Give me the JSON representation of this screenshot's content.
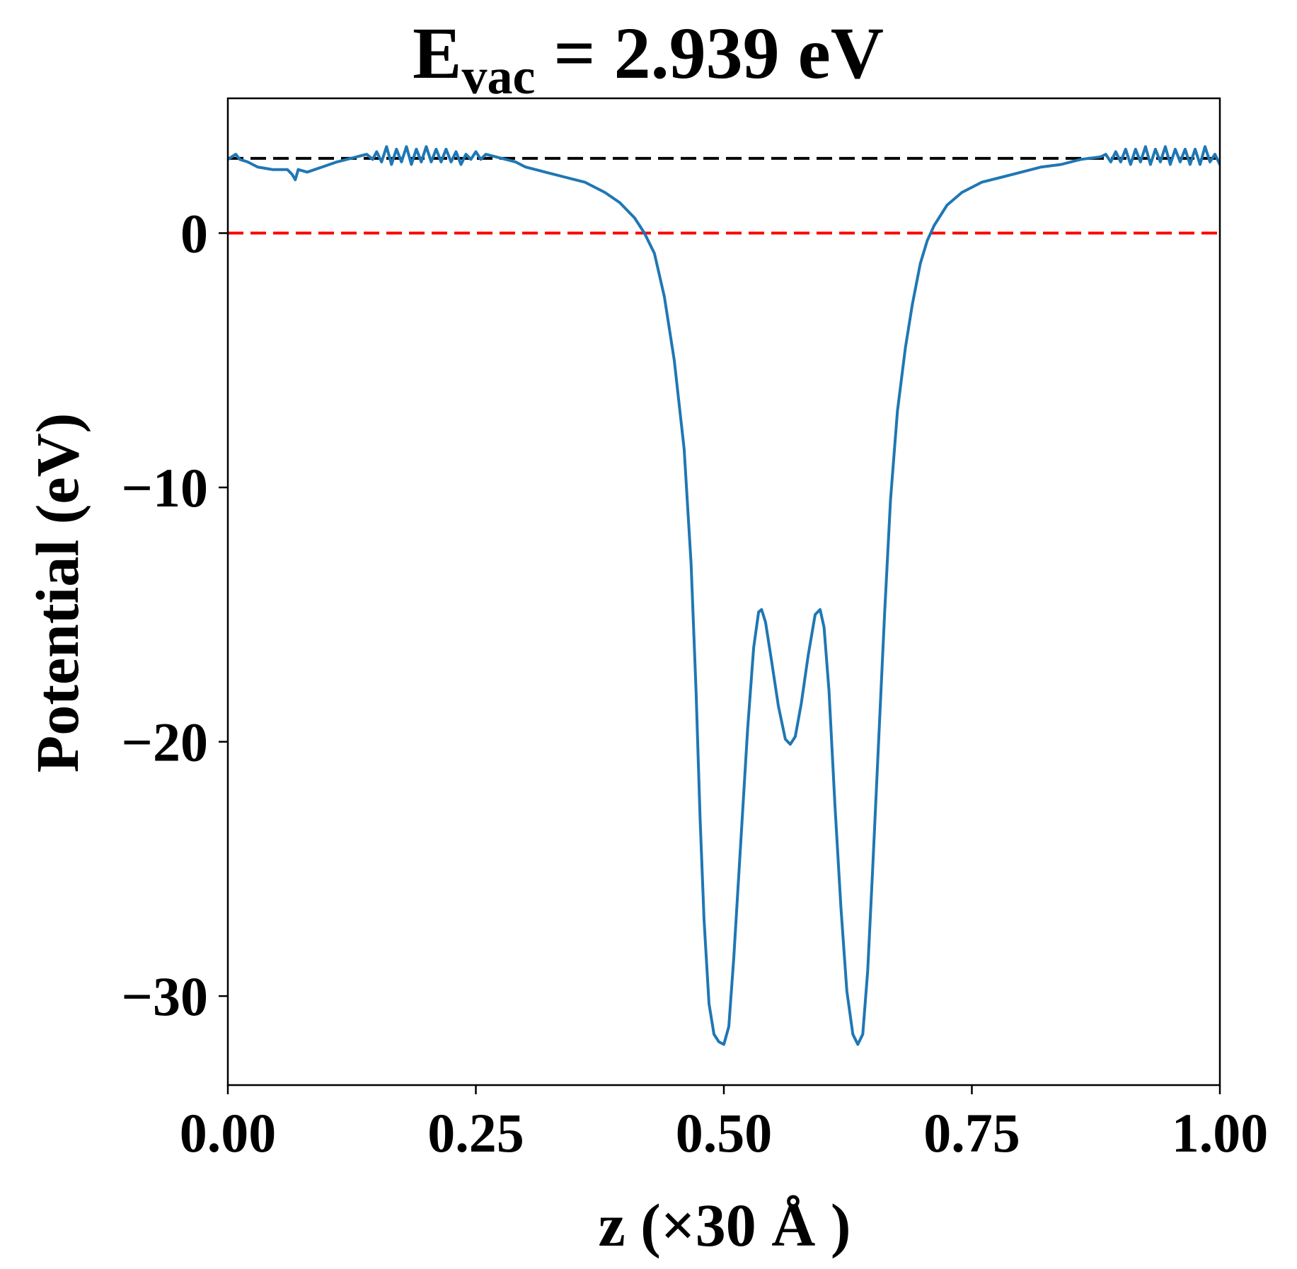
{
  "chart_data": {
    "type": "line",
    "title": {
      "main": "E",
      "subscript": "vac",
      "rest": " = 2.939 eV"
    },
    "xlabel": "z (×30 Å )",
    "ylabel": "Potential (eV)",
    "xlim": [
      0,
      1
    ],
    "ylim": [
      -33.5,
      5.3
    ],
    "x_ticks": [
      0,
      0.25,
      0.5,
      0.75,
      1.0
    ],
    "x_tick_labels": [
      "0.00",
      "0.25",
      "0.50",
      "0.75",
      "1.00"
    ],
    "y_ticks": [
      0,
      -10,
      -20,
      -30
    ],
    "y_tick_labels": [
      "0",
      "−10",
      "−20",
      "−30"
    ],
    "reference_lines": [
      {
        "y": 2.939,
        "color": "#000000",
        "style": "dashed"
      },
      {
        "y": 0,
        "color": "#ff0000",
        "style": "dashed"
      }
    ],
    "series": [
      {
        "color": "#1f77b4",
        "points": [
          [
            0.0,
            2.9
          ],
          [
            0.008,
            3.1
          ],
          [
            0.012,
            2.9
          ],
          [
            0.02,
            2.8
          ],
          [
            0.03,
            2.6
          ],
          [
            0.045,
            2.5
          ],
          [
            0.06,
            2.5
          ],
          [
            0.065,
            2.3
          ],
          [
            0.068,
            2.1
          ],
          [
            0.071,
            2.5
          ],
          [
            0.08,
            2.4
          ],
          [
            0.095,
            2.6
          ],
          [
            0.11,
            2.8
          ],
          [
            0.13,
            3.0
          ],
          [
            0.14,
            3.1
          ],
          [
            0.146,
            2.9
          ],
          [
            0.15,
            3.2
          ],
          [
            0.155,
            2.8
          ],
          [
            0.16,
            3.4
          ],
          [
            0.165,
            2.7
          ],
          [
            0.17,
            3.3
          ],
          [
            0.175,
            2.8
          ],
          [
            0.18,
            3.4
          ],
          [
            0.185,
            2.7
          ],
          [
            0.19,
            3.3
          ],
          [
            0.195,
            2.8
          ],
          [
            0.2,
            3.4
          ],
          [
            0.205,
            2.8
          ],
          [
            0.21,
            3.3
          ],
          [
            0.215,
            2.8
          ],
          [
            0.22,
            3.3
          ],
          [
            0.225,
            2.8
          ],
          [
            0.23,
            3.2
          ],
          [
            0.235,
            2.7
          ],
          [
            0.24,
            3.1
          ],
          [
            0.245,
            2.9
          ],
          [
            0.25,
            3.2
          ],
          [
            0.255,
            2.9
          ],
          [
            0.26,
            3.1
          ],
          [
            0.27,
            3.0
          ],
          [
            0.28,
            2.9
          ],
          [
            0.29,
            2.8
          ],
          [
            0.3,
            2.6
          ],
          [
            0.32,
            2.4
          ],
          [
            0.34,
            2.2
          ],
          [
            0.36,
            2.0
          ],
          [
            0.38,
            1.6
          ],
          [
            0.395,
            1.2
          ],
          [
            0.41,
            0.6
          ],
          [
            0.42,
            0.0
          ],
          [
            0.43,
            -0.8
          ],
          [
            0.44,
            -2.5
          ],
          [
            0.45,
            -5.0
          ],
          [
            0.46,
            -8.5
          ],
          [
            0.467,
            -13.0
          ],
          [
            0.472,
            -18.0
          ],
          [
            0.476,
            -23.0
          ],
          [
            0.48,
            -27.0
          ],
          [
            0.485,
            -30.3
          ],
          [
            0.49,
            -31.5
          ],
          [
            0.495,
            -31.8
          ],
          [
            0.5,
            -31.9
          ],
          [
            0.505,
            -31.2
          ],
          [
            0.51,
            -28.5
          ],
          [
            0.517,
            -24.0
          ],
          [
            0.524,
            -19.5
          ],
          [
            0.53,
            -16.3
          ],
          [
            0.535,
            -14.9
          ],
          [
            0.538,
            -14.8
          ],
          [
            0.542,
            -15.3
          ],
          [
            0.548,
            -16.8
          ],
          [
            0.555,
            -18.6
          ],
          [
            0.562,
            -19.9
          ],
          [
            0.567,
            -20.1
          ],
          [
            0.572,
            -19.8
          ],
          [
            0.578,
            -18.5
          ],
          [
            0.585,
            -16.6
          ],
          [
            0.592,
            -15.0
          ],
          [
            0.597,
            -14.8
          ],
          [
            0.601,
            -15.5
          ],
          [
            0.606,
            -18.0
          ],
          [
            0.612,
            -22.5
          ],
          [
            0.618,
            -26.5
          ],
          [
            0.624,
            -29.8
          ],
          [
            0.63,
            -31.5
          ],
          [
            0.635,
            -31.9
          ],
          [
            0.64,
            -31.5
          ],
          [
            0.645,
            -29.0
          ],
          [
            0.65,
            -25.0
          ],
          [
            0.656,
            -20.0
          ],
          [
            0.662,
            -15.0
          ],
          [
            0.668,
            -10.5
          ],
          [
            0.675,
            -7.0
          ],
          [
            0.683,
            -4.5
          ],
          [
            0.69,
            -2.8
          ],
          [
            0.698,
            -1.2
          ],
          [
            0.705,
            -0.3
          ],
          [
            0.712,
            0.3
          ],
          [
            0.725,
            1.1
          ],
          [
            0.74,
            1.6
          ],
          [
            0.76,
            2.0
          ],
          [
            0.78,
            2.2
          ],
          [
            0.8,
            2.4
          ],
          [
            0.82,
            2.6
          ],
          [
            0.84,
            2.7
          ],
          [
            0.86,
            2.9
          ],
          [
            0.88,
            3.0
          ],
          [
            0.885,
            3.1
          ],
          [
            0.89,
            2.8
          ],
          [
            0.895,
            3.2
          ],
          [
            0.9,
            2.8
          ],
          [
            0.905,
            3.3
          ],
          [
            0.91,
            2.7
          ],
          [
            0.915,
            3.3
          ],
          [
            0.92,
            2.8
          ],
          [
            0.925,
            3.4
          ],
          [
            0.93,
            2.7
          ],
          [
            0.935,
            3.3
          ],
          [
            0.94,
            2.8
          ],
          [
            0.945,
            3.4
          ],
          [
            0.95,
            2.7
          ],
          [
            0.955,
            3.3
          ],
          [
            0.96,
            2.8
          ],
          [
            0.965,
            3.3
          ],
          [
            0.97,
            2.7
          ],
          [
            0.975,
            3.3
          ],
          [
            0.98,
            2.7
          ],
          [
            0.985,
            3.4
          ],
          [
            0.99,
            2.8
          ],
          [
            0.995,
            3.1
          ],
          [
            1.0,
            2.7
          ]
        ]
      }
    ]
  }
}
